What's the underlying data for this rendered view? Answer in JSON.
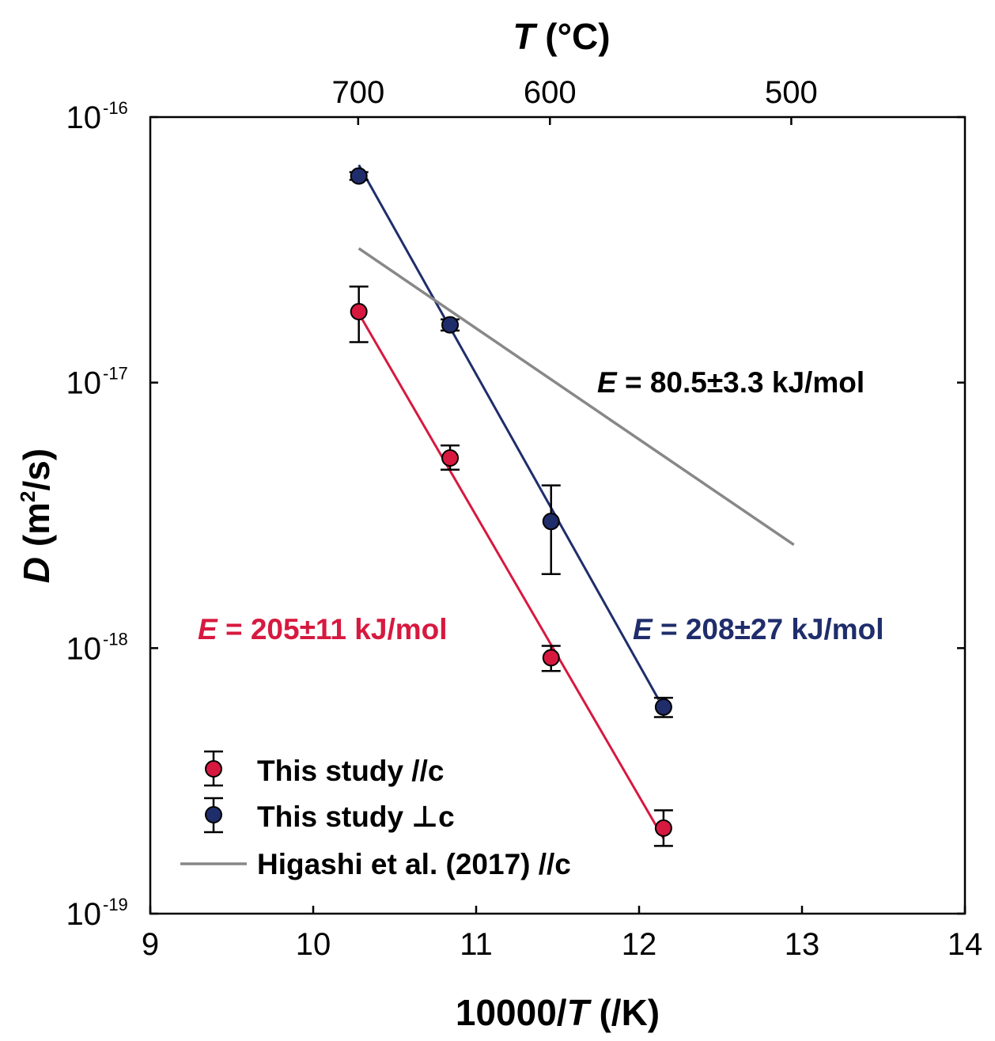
{
  "chart_data": {
    "type": "scatter",
    "x_axis": {
      "label_main": "10000/",
      "label_italic": "T",
      "label_unit": " (/K)",
      "range": [
        9,
        14
      ],
      "ticks": [
        9,
        10,
        11,
        12,
        13,
        14
      ],
      "tick_labels": [
        "9",
        "10",
        "11",
        "12",
        "13",
        "14"
      ]
    },
    "y_axis": {
      "label_italic": "D",
      "label_unit_pre": " (m",
      "label_unit_sup": "2",
      "label_unit_post": "/s)",
      "scale": "log",
      "range": [
        1e-19,
        1e-16
      ],
      "ticks": [
        1e-19,
        1e-18,
        1e-17,
        1e-16
      ],
      "tick_mantissa": "10",
      "tick_exponents": [
        "-19",
        "-18",
        "-17",
        "-16"
      ]
    },
    "top_axis": {
      "label_italic": "T",
      "label_unit": " (°C)",
      "ticks_celsius": [
        700,
        600,
        500
      ],
      "tick_labels": [
        "700",
        "600",
        "500"
      ]
    },
    "series": [
      {
        "name": "This study //c",
        "color": "#d7193f",
        "marker": "circle",
        "points": [
          {
            "x": 10.28,
            "y": 1.85e-17,
            "y_lo": 1.42e-17,
            "y_hi": 2.3e-17
          },
          {
            "x": 10.84,
            "y": 5.2e-18,
            "y_lo": 4.7e-18,
            "y_hi": 5.8e-18
          },
          {
            "x": 11.46,
            "y": 9.2e-19,
            "y_lo": 8.2e-19,
            "y_hi": 1.02e-18
          },
          {
            "x": 12.15,
            "y": 2.1e-19,
            "y_lo": 1.8e-19,
            "y_hi": 2.45e-19
          }
        ],
        "fit": [
          {
            "x": 10.28,
            "y": 1.82e-17
          },
          {
            "x": 12.15,
            "y": 1.92e-19
          }
        ]
      },
      {
        "name": "This study ⊥c",
        "color": "#1f2d6b",
        "marker": "circle",
        "points": [
          {
            "x": 10.28,
            "y": 6e-17,
            "y_lo": 5.8e-17,
            "y_hi": 6.2e-17
          },
          {
            "x": 10.84,
            "y": 1.65e-17,
            "y_lo": 1.57e-17,
            "y_hi": 1.73e-17
          },
          {
            "x": 11.46,
            "y": 3e-18,
            "y_lo": 1.9e-18,
            "y_hi": 4.1e-18
          },
          {
            "x": 12.15,
            "y": 6e-19,
            "y_lo": 5.5e-19,
            "y_hi": 6.5e-19
          }
        ],
        "fit": [
          {
            "x": 10.28,
            "y": 6.6e-17
          },
          {
            "x": 12.12,
            "y": 6.4e-19
          }
        ]
      },
      {
        "name": "Higashi et al. (2017) //c",
        "color": "#888888",
        "marker": "line",
        "fit": [
          {
            "x": 10.28,
            "y": 3.2e-17
          },
          {
            "x": 12.95,
            "y": 2.45e-18
          }
        ]
      }
    ],
    "annotations": [
      {
        "italic": "E",
        "text": " = 205±11 kJ/mol",
        "color": "#d7193f"
      },
      {
        "italic": "E",
        "text": " = 208±27 kJ/mol",
        "color": "#1f2d6b"
      },
      {
        "italic": "E",
        "text": " = 80.5±3.3 kJ/mol",
        "color": "#000000"
      }
    ],
    "legend": {
      "placement": "bottom-left",
      "entries": [
        "This study //c",
        "This study ⊥c",
        "Higashi et al. (2017) //c"
      ]
    },
    "grid": false
  }
}
